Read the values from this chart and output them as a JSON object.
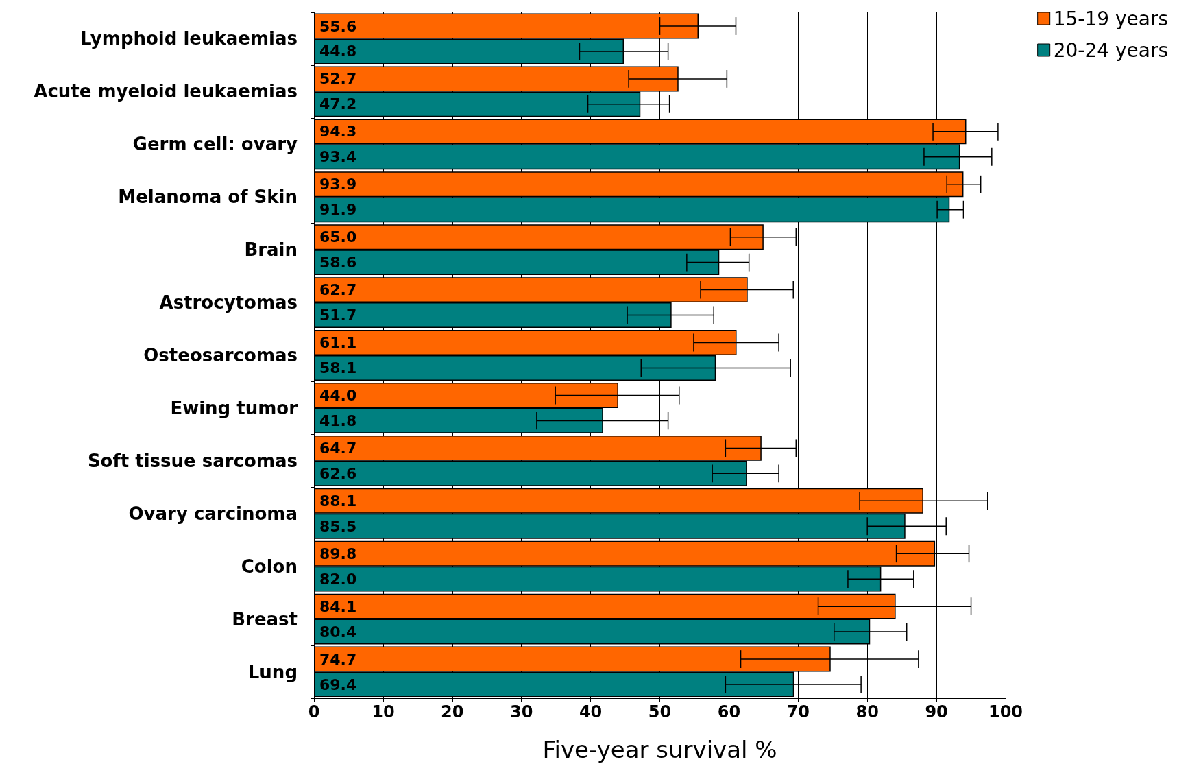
{
  "chart_data": {
    "type": "bar",
    "orientation": "horizontal",
    "xlabel": "Five-year survival %",
    "categories": [
      "Lymphoid leukaemias",
      "Acute myeloid leukaemias",
      "Germ cell: ovary",
      "Melanoma of Skin",
      "Brain",
      "Astrocytomas",
      "Osteosarcomas",
      "Ewing tumor",
      "Soft tissue sarcomas",
      "Ovary carcinoma",
      "Colon",
      "Breast",
      "Lung"
    ],
    "series": [
      {
        "name": "15-19 years",
        "color": "#ff6600",
        "values": [
          55.6,
          52.7,
          94.3,
          93.9,
          65.0,
          62.7,
          61.1,
          44.0,
          64.7,
          88.1,
          89.8,
          84.1,
          74.7
        ],
        "value_labels": [
          "55.6",
          "52.7",
          "94.3",
          "93.9",
          "65.0",
          "62.7",
          "61.1",
          "44.0",
          "64.7",
          "88.1",
          "89.8",
          "84.1",
          "74.7"
        ],
        "errors": [
          [
            50.0,
            61.0
          ],
          [
            45.5,
            59.7
          ],
          [
            89.5,
            98.9
          ],
          [
            91.5,
            96.4
          ],
          [
            60.2,
            69.7
          ],
          [
            55.9,
            69.3
          ],
          [
            54.9,
            67.2
          ],
          [
            34.9,
            52.8
          ],
          [
            59.5,
            69.7
          ],
          [
            78.9,
            97.4
          ],
          [
            84.2,
            94.7
          ],
          [
            72.9,
            95.0
          ],
          [
            61.7,
            87.4
          ]
        ]
      },
      {
        "name": "20-24 years",
        "color": "#008080",
        "values": [
          44.8,
          47.2,
          93.4,
          91.9,
          58.6,
          51.7,
          58.1,
          41.8,
          62.6,
          85.5,
          82.0,
          80.4,
          69.4
        ],
        "value_labels": [
          "44.8",
          "47.2",
          "93.4",
          "91.9",
          "58.6",
          "51.7",
          "58.1",
          "41.8",
          "62.6",
          "85.5",
          "82.0",
          "80.4",
          "69.4"
        ],
        "errors": [
          [
            38.4,
            51.2
          ],
          [
            39.6,
            51.4
          ],
          [
            88.2,
            98.0
          ],
          [
            90.1,
            93.9
          ],
          [
            53.9,
            62.9
          ],
          [
            45.3,
            57.8
          ],
          [
            47.3,
            68.9
          ],
          [
            32.2,
            51.2
          ],
          [
            57.6,
            67.2
          ],
          [
            80.0,
            91.4
          ],
          [
            77.2,
            86.7
          ],
          [
            75.2,
            85.7
          ],
          [
            59.5,
            79.1
          ]
        ]
      }
    ],
    "xlim": [
      0,
      100
    ],
    "xticks": [
      0,
      10,
      20,
      30,
      40,
      50,
      60,
      70,
      80,
      90,
      100
    ],
    "grid": "x",
    "legend": "top right"
  }
}
